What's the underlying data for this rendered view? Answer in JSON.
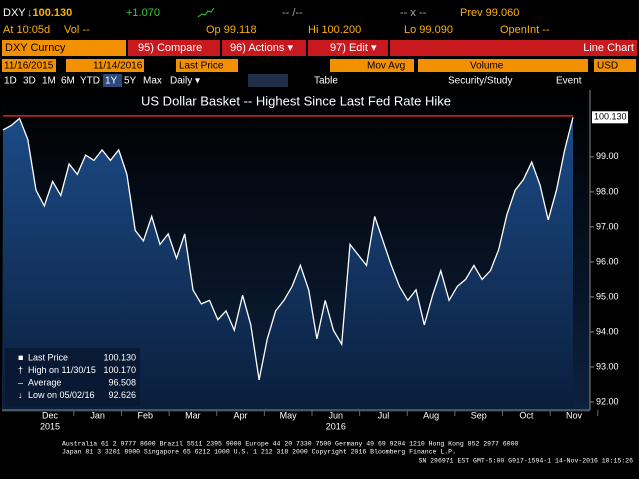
{
  "header": {
    "ticker": "DXY",
    "last": "↓100.130",
    "change": "+1.070",
    "range": "-- /--",
    "bid_ask": "-- x --",
    "prev": "Prev 99.060",
    "at": "At 10:05d",
    "vol": "Vol --",
    "open": "Op 99.118",
    "high": "Hi 100.200",
    "low": "Lo 99.090",
    "open_int": "OpenInt --"
  },
  "toolbar": {
    "security": "DXY Curncy",
    "buttons": [
      "95) Compare",
      "96) Actions ▾",
      "97) Edit ▾"
    ],
    "chart_type": "Line Chart",
    "start_date": "11/16/2015",
    "end_date": "11/14/2016",
    "field": "Last Price",
    "mov_avg": "Mov Avg",
    "volume": "Volume",
    "currency": "USD",
    "periods": [
      "1D",
      "3D",
      "1M",
      "6M",
      "YTD",
      "1Y",
      "5Y",
      "Max"
    ],
    "frequency": "Daily ▾",
    "table": "Table",
    "study": "Security/Study",
    "event": "Event"
  },
  "chart_data": {
    "type": "line",
    "title": "US Dollar Basket -- Highest Since Last Fed Rate Hike",
    "color": "#ffffff",
    "values": [
      99.77,
      99.9,
      100.1,
      99.5,
      98.05,
      97.6,
      98.3,
      97.9,
      98.8,
      98.5,
      99.05,
      98.9,
      99.2,
      98.9,
      99.2,
      98.5,
      96.9,
      96.6,
      97.3,
      96.5,
      96.8,
      96.1,
      96.8,
      95.2,
      94.8,
      94.9,
      94.35,
      94.6,
      94.05,
      95.05,
      94.2,
      92.63,
      93.8,
      94.6,
      94.9,
      95.3,
      95.9,
      95.2,
      93.8,
      94.9,
      94.05,
      93.65,
      96.5,
      96.2,
      95.9,
      97.3,
      96.6,
      95.9,
      95.3,
      94.9,
      95.2,
      94.2,
      95.05,
      95.75,
      94.9,
      95.3,
      95.5,
      95.9,
      95.5,
      95.75,
      96.35,
      97.35,
      98.05,
      98.35,
      98.85,
      98.2,
      97.2,
      98.05,
      99.2,
      100.13
    ],
    "x_labels": [
      "Dec",
      "Jan",
      "Feb",
      "Mar",
      "Apr",
      "May",
      "Jun",
      "Jul",
      "Aug",
      "Sep",
      "Oct",
      "Nov"
    ],
    "year_labels": [
      "2015",
      "2016"
    ],
    "ylim": [
      91.77,
      100.91
    ],
    "yticks": [
      {
        "value": 92,
        "label": "92.00"
      },
      {
        "value": 93,
        "label": "93.00"
      },
      {
        "value": 94,
        "label": "94.00"
      },
      {
        "value": 95,
        "label": "95.00"
      },
      {
        "value": 96,
        "label": "96.00"
      },
      {
        "value": 97,
        "label": "97.00"
      },
      {
        "value": 98,
        "label": "98.00"
      },
      {
        "value": 99,
        "label": "99.00"
      }
    ],
    "legend_items": [
      "Last Price",
      "High on 11/30/15",
      "Average",
      "Low on 05/02/16"
    ],
    "legend_values": [
      100.13,
      100.17,
      96.508,
      92.626
    ],
    "legend_value_labels": [
      "100.130",
      "100.170",
      "96.508",
      "92.626"
    ]
  },
  "footer": [
    "Australia 61 2 9777 8600 Brazil 5511 2395 9000 Europe 44 20 7330 7500 Germany 49 69 9204 1210 Hong Kong 852 2977 6000",
    "Japan 81 3 3201 8900       Singapore 65 6212 1000       U.S. 1 212 318 2000       Copyright 2016 Bloomberg Finance L.P.",
    "SN 296971 EST  GMT-5:00 G917-1594-1 14-Nov-2016 10:15:26"
  ]
}
